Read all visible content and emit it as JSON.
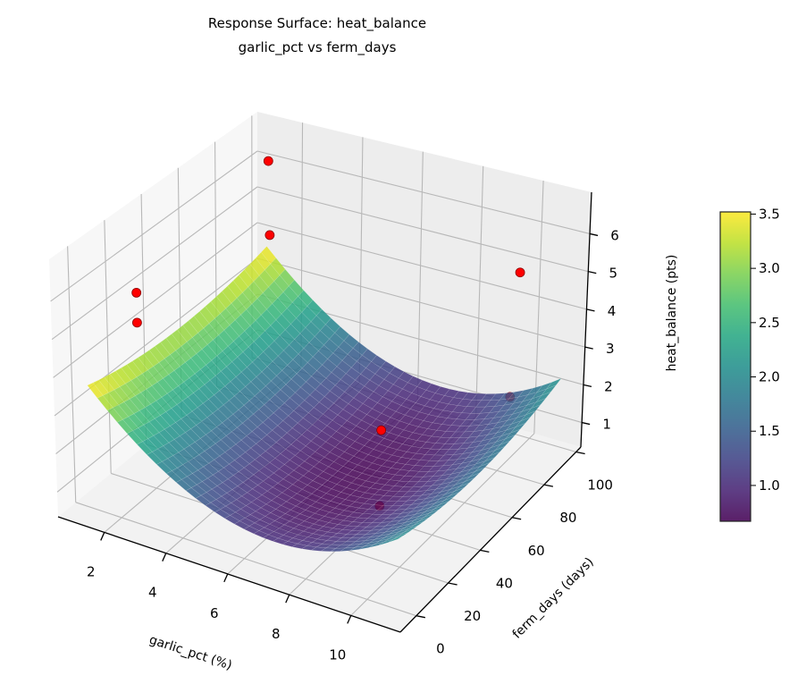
{
  "chart_data": {
    "type": "surface3d",
    "title": "Response Surface: heat_balance",
    "subtitle": "garlic_pct vs ferm_days",
    "xlabel": "garlic_pct (%)",
    "ylabel": "ferm_days (days)",
    "zlabel": "heat_balance (pts)",
    "colorbar_label": "heat_balance (pts)",
    "colormap": "viridis",
    "xlim": [
      0.5,
      11.6
    ],
    "ylim": [
      -10,
      103
    ],
    "zlim": [
      0.35,
      7.1
    ],
    "xticks": [
      2,
      4,
      6,
      8,
      10
    ],
    "yticks": [
      0,
      20,
      40,
      60,
      80,
      100
    ],
    "zticks": [
      1,
      2,
      3,
      4,
      5,
      6
    ],
    "colorbar_range": [
      0.67,
      3.52
    ],
    "colorbar_ticks": [
      "1.0",
      "1.5",
      "2.0",
      "2.5",
      "3.0",
      "3.5"
    ],
    "grid": true,
    "surface": {
      "x_range": [
        1,
        11
      ],
      "y_range": [
        0,
        100
      ],
      "model": "z = 0.67 + 0.07*(x-7)^2 + 0.00015*(y-50)^2",
      "coef": {
        "c0": 0.67,
        "ax": 0.07,
        "x0": 7,
        "ay": 0.00015,
        "y0": 50
      }
    },
    "points": [
      {
        "x": 1.05,
        "y": 100,
        "z": 5.95
      },
      {
        "x": 1.1,
        "y": 100,
        "z": 3.9
      },
      {
        "x": 1.0,
        "y": 28,
        "z": 5.0
      },
      {
        "x": 1.0,
        "y": 28,
        "z": 4.2
      },
      {
        "x": 9.5,
        "y": 100,
        "z": 4.67
      },
      {
        "x": 9.3,
        "y": 100,
        "z": 1.3
      },
      {
        "x": 7.3,
        "y": 58,
        "z": 1.7
      },
      {
        "x": 8.2,
        "y": 41,
        "z": 0.62
      }
    ],
    "point_color": "#ff0000"
  }
}
